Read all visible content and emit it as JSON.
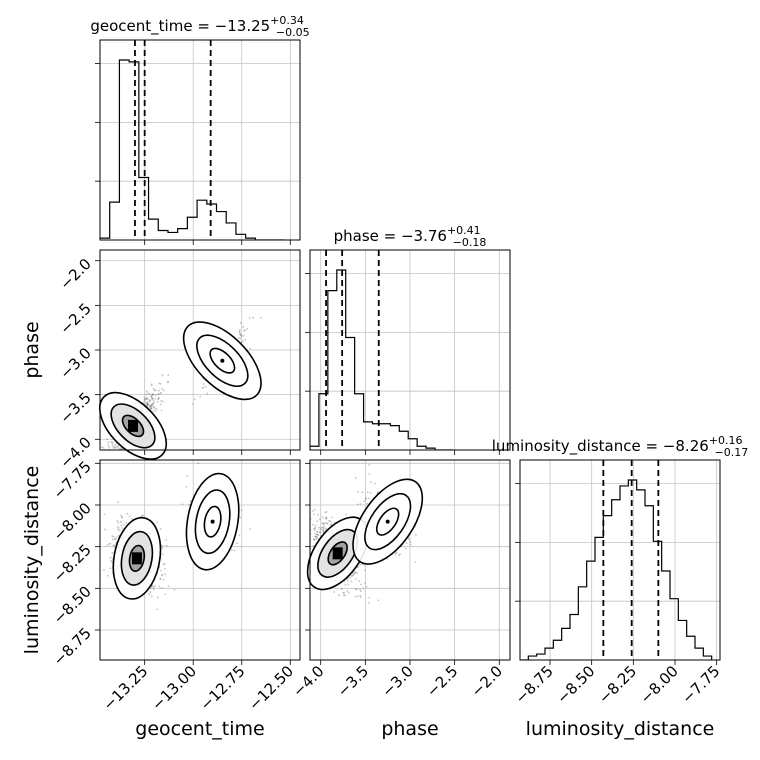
{
  "chart_data": {
    "type": "corner",
    "parameters": [
      "geocent_time",
      "phase",
      "luminosity_distance"
    ],
    "ranges": {
      "geocent_time": [
        -13.48,
        -12.45
      ],
      "phase": [
        -4.12,
        -1.88
      ],
      "luminosity_distance": [
        -8.93,
        -7.73
      ]
    },
    "ticks": {
      "geocent_time": [
        -13.25,
        -13.0,
        -12.75,
        -12.5
      ],
      "phase": [
        -4.0,
        -3.5,
        -3.0,
        -2.5,
        -2.0
      ],
      "luminosity_distance": [
        -8.75,
        -8.5,
        -8.25,
        -8.0,
        -7.75
      ]
    },
    "tick_labels": {
      "geocent_time": [
        "−13.25",
        "−13.00",
        "−12.75",
        "−12.50"
      ],
      "phase": [
        "−4.0",
        "−3.5",
        "−3.0",
        "−2.5",
        "−2.0"
      ],
      "luminosity_distance": [
        "−8.75",
        "−8.50",
        "−8.25",
        "−8.00",
        "−7.75"
      ]
    },
    "axis_labels": {
      "geocent_time": "geocent_time",
      "phase": "phase",
      "luminosity_distance": "luminosity_distance"
    },
    "titles": [
      {
        "param": "geocent_time",
        "prefix": "geocent_time = ",
        "median": "−13.25",
        "plus": "+0.34",
        "minus": "−0.05"
      },
      {
        "param": "phase",
        "prefix": "phase = ",
        "median": "−3.76",
        "plus": "+0.41",
        "minus": "−0.18"
      },
      {
        "param": "luminosity_distance",
        "prefix": "luminosity_distance = ",
        "median": "−8.26",
        "plus": "+0.16",
        "minus": "−0.17"
      }
    ],
    "quantiles": {
      "geocent_time": [
        -13.3,
        -13.25,
        -12.91
      ],
      "phase": [
        -3.94,
        -3.76,
        -3.35
      ],
      "luminosity_distance": [
        -8.43,
        -8.26,
        -8.1
      ]
    },
    "histograms": {
      "geocent_time": {
        "edges": [
          -13.48,
          -13.43,
          -13.38,
          -13.33,
          -13.28,
          -13.23,
          -13.18,
          -13.13,
          -13.08,
          -13.03,
          -12.98,
          -12.93,
          -12.88,
          -12.83,
          -12.78,
          -12.73,
          -12.68,
          -12.63,
          -12.58,
          -12.53
        ],
        "counts": [
          0.01,
          0.2,
          0.95,
          0.94,
          0.33,
          0.11,
          0.05,
          0.04,
          0.06,
          0.12,
          0.21,
          0.19,
          0.15,
          0.09,
          0.03,
          0.01,
          0.0,
          0.0,
          0.0
        ]
      },
      "phase": {
        "edges": [
          -4.12,
          -4.02,
          -3.92,
          -3.82,
          -3.72,
          -3.62,
          -3.52,
          -3.42,
          -3.32,
          -3.22,
          -3.12,
          -3.02,
          -2.92,
          -2.82,
          -2.72,
          -2.62,
          -2.52
        ],
        "counts": [
          0.02,
          0.3,
          0.85,
          0.96,
          0.6,
          0.3,
          0.15,
          0.14,
          0.14,
          0.13,
          0.1,
          0.06,
          0.02,
          0.01,
          0.0,
          0.0
        ]
      },
      "luminosity_distance": {
        "edges": [
          -8.93,
          -8.88,
          -8.83,
          -8.78,
          -8.73,
          -8.68,
          -8.63,
          -8.58,
          -8.53,
          -8.48,
          -8.43,
          -8.38,
          -8.33,
          -8.28,
          -8.23,
          -8.18,
          -8.13,
          -8.08,
          -8.03,
          -7.98,
          -7.93,
          -7.88,
          -7.83,
          -7.78
        ],
        "counts": [
          0.0,
          0.02,
          0.03,
          0.06,
          0.1,
          0.16,
          0.23,
          0.37,
          0.5,
          0.62,
          0.73,
          0.81,
          0.88,
          0.91,
          0.86,
          0.78,
          0.6,
          0.45,
          0.31,
          0.2,
          0.12,
          0.06,
          0.02
        ]
      }
    },
    "contour_modes": {
      "phase_vs_geocent_time": [
        {
          "x": -13.31,
          "y": -3.85,
          "w": 0.85
        },
        {
          "x": -12.85,
          "y": -3.12,
          "w": 0.18
        }
      ],
      "luminosity_distance_vs_geocent_time": [
        {
          "x": -13.29,
          "y": -8.32,
          "w": 0.85
        },
        {
          "x": -12.9,
          "y": -8.1,
          "w": 0.2
        }
      ],
      "luminosity_distance_vs_phase": [
        {
          "x": -3.81,
          "y": -8.29,
          "w": 0.85
        },
        {
          "x": -3.25,
          "y": -8.1,
          "w": 0.22
        }
      ]
    },
    "grid": true,
    "legend": "none"
  }
}
